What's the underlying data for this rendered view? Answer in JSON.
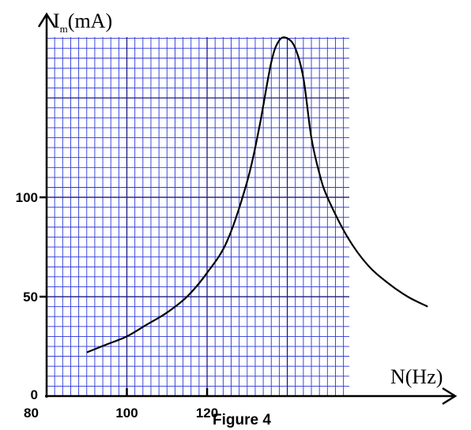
{
  "chart_data": {
    "type": "line",
    "title": "",
    "caption": "Figure 4",
    "xlabel": "N(Hz)",
    "ylabel": {
      "symbol": "I",
      "subscript": "m",
      "unit": "(mA)"
    },
    "xlim": [
      80,
      178.5
    ],
    "ylim": [
      0,
      183
    ],
    "x_ticks": [
      {
        "value": 80,
        "label": "80"
      },
      {
        "value": 100,
        "label": "100"
      },
      {
        "value": 120,
        "label": "120"
      }
    ],
    "y_ticks": [
      {
        "value": 0,
        "label": "0"
      },
      {
        "value": 50,
        "label": "50"
      },
      {
        "value": 100,
        "label": "100"
      }
    ],
    "grid": true,
    "grid_minor_x": 2,
    "grid_minor_y": 5,
    "grid_major_x": 20,
    "grid_major_y": 50,
    "colors": {
      "grid": "#2a36d8",
      "grid_major": "#1a1a80",
      "curve": "#000000",
      "axes": "#000000"
    },
    "series": [
      {
        "x": [
          90,
          95,
          100,
          105,
          110,
          115,
          120,
          125,
          130,
          133,
          136,
          138,
          140,
          142,
          144,
          146,
          148,
          150,
          155,
          160,
          165,
          170,
          175
        ],
        "y": [
          22,
          26,
          30,
          36,
          42,
          50,
          62,
          78,
          108,
          135,
          168,
          179,
          180,
          175,
          160,
          130,
          112,
          100,
          80,
          66,
          57,
          50,
          45
        ]
      }
    ]
  }
}
